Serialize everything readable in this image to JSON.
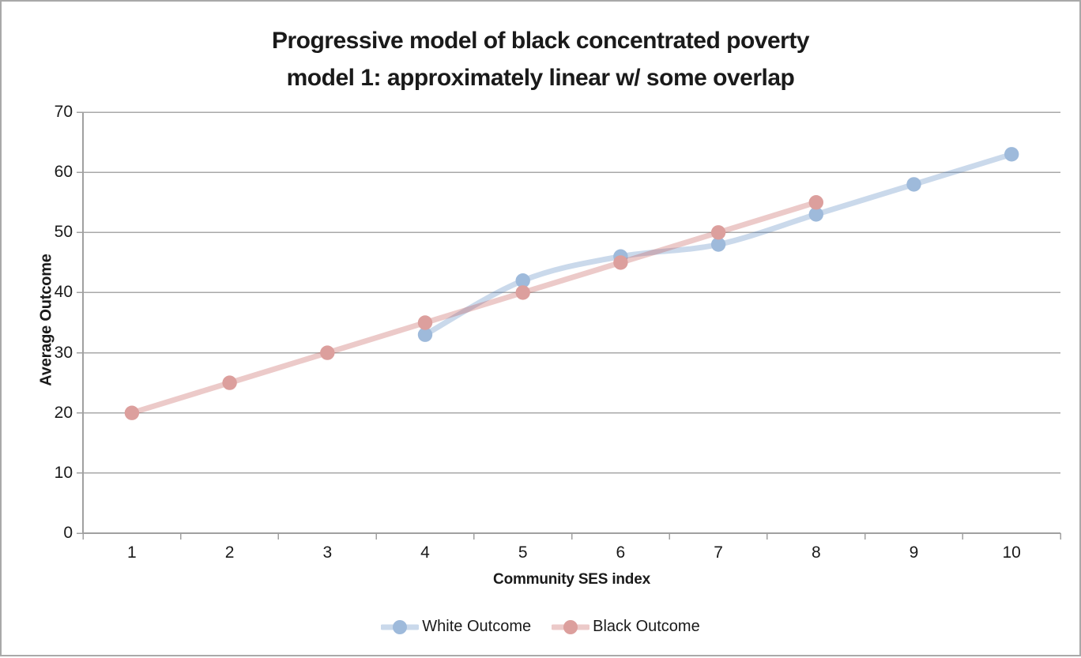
{
  "chart_data": {
    "type": "line",
    "title": "Progressive model of black concentrated poverty",
    "subtitle": "model 1: approximately linear w/ some overlap",
    "xlabel": "Community SES index",
    "ylabel": "Average Outcome",
    "categories": [
      "1",
      "2",
      "3",
      "4",
      "5",
      "6",
      "7",
      "8",
      "9",
      "10"
    ],
    "y_ticks": [
      0,
      10,
      20,
      30,
      40,
      50,
      60,
      70
    ],
    "ylim": [
      0,
      70
    ],
    "grid": "horizontal",
    "smoothed": true,
    "legend_position": "bottom",
    "colors": {
      "grid": "#a8a8a8",
      "axis": "#a0a0a0",
      "text": "#1a1a1a",
      "border": "#a9a9a9"
    },
    "series": [
      {
        "name": "White Outcome",
        "color": "#4F81BD",
        "marker_fill": "#9EBADB",
        "line_opacity": 0.3,
        "points": [
          [
            4,
            33
          ],
          [
            5,
            42
          ],
          [
            6,
            46
          ],
          [
            7,
            48
          ],
          [
            8,
            53
          ],
          [
            9,
            58
          ],
          [
            10,
            63
          ]
        ]
      },
      {
        "name": "Black Outcome",
        "color": "#C0504D",
        "marker_fill": "#DC9F9D",
        "line_opacity": 0.3,
        "points": [
          [
            1,
            20
          ],
          [
            2,
            25
          ],
          [
            3,
            30
          ],
          [
            4,
            35
          ],
          [
            5,
            40
          ],
          [
            6,
            45
          ],
          [
            7,
            50
          ],
          [
            8,
            55
          ]
        ]
      }
    ]
  }
}
